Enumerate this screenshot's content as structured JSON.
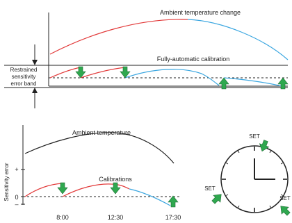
{
  "top_panel": {
    "curve_label": "Ambient temperature change",
    "calibration_label": "Fully-automatic calibration",
    "band_label_lines": [
      "Restrained",
      "sensitivity",
      "error band"
    ]
  },
  "bottom_panel": {
    "ambient_label": "Ambient temperature",
    "calibrations_label": "Calibrations",
    "y_axis_label": "Sensitivity error",
    "plus_sign": "+",
    "zero_sign": "0",
    "minus_sign": "–",
    "times": [
      "8:00",
      "12:30",
      "17:30"
    ]
  },
  "clock": {
    "set_label": "SET"
  },
  "colors": {
    "rising_curve": "#e23a3a",
    "falling_curve": "#3aa6e0",
    "ambient_curve": "#222222",
    "arrow_fill": "#2fa84f",
    "arrow_stroke": "#1f6b34"
  }
}
